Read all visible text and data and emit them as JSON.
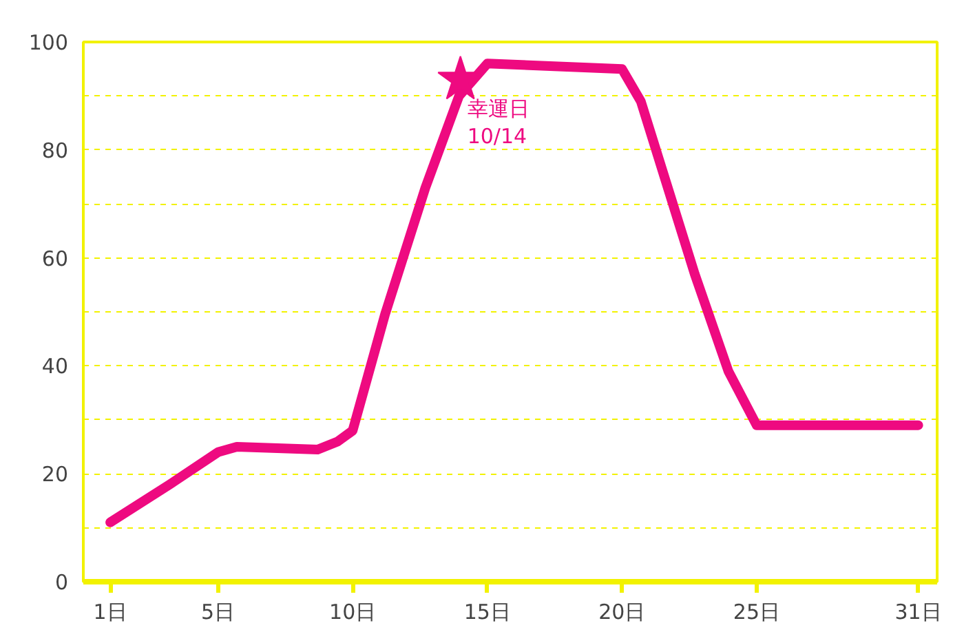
{
  "chart_data": {
    "type": "line",
    "x": [
      1,
      3.2,
      5,
      5.7,
      8.7,
      9.45,
      10,
      11.2,
      12.7,
      13.95,
      15,
      20,
      20.7,
      22.7,
      23.95,
      25,
      31
    ],
    "series": [
      {
        "color": "#ee0a80",
        "values": [
          11,
          18,
          24,
          25,
          24.5,
          26,
          28,
          49.5,
          73,
          90,
          96,
          95,
          89,
          57,
          39,
          29,
          29
        ]
      }
    ],
    "xlim": [
      0,
      31.7
    ],
    "ylim": [
      0,
      100
    ],
    "xticks": [
      {
        "value": 1,
        "label": "1日"
      },
      {
        "value": 5,
        "label": "5日"
      },
      {
        "value": 10,
        "label": "10日"
      },
      {
        "value": 15,
        "label": "15日"
      },
      {
        "value": 20,
        "label": "20日"
      },
      {
        "value": 25,
        "label": "25日"
      },
      {
        "value": 31,
        "label": "31日"
      }
    ],
    "yticks": [
      0,
      {
        "value": 10,
        "label": null
      },
      20,
      {
        "value": 30,
        "label": null
      },
      40,
      {
        "value": 50,
        "label": null
      },
      60,
      {
        "value": 70,
        "label": null
      },
      80,
      {
        "value": 90,
        "label": null
      },
      100
    ],
    "grid": "y",
    "line_style": "solid",
    "annotations": [
      {
        "text": "幸運日\n10/14",
        "x": 14,
        "y": 93
      }
    ]
  }
}
